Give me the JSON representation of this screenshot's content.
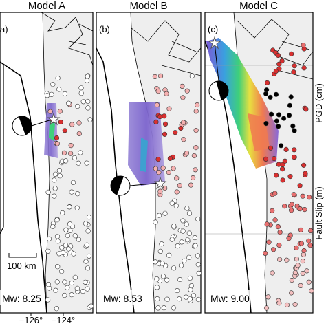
{
  "panels": [
    {
      "title": "Model A",
      "label": "a)",
      "magnitude": "Mw: 8.25"
    },
    {
      "title": "Model B",
      "label": "(b)",
      "magnitude": "Mw: 8.53"
    },
    {
      "title": "Model C",
      "label": "(c)",
      "magnitude": "Mw: 9.00"
    }
  ],
  "scale_bar": "100 km",
  "x_axis_labels": [
    "−126°",
    "−124°"
  ],
  "side_labels": [
    "PGD (cm)",
    "Fault Slip (m)"
  ]
}
